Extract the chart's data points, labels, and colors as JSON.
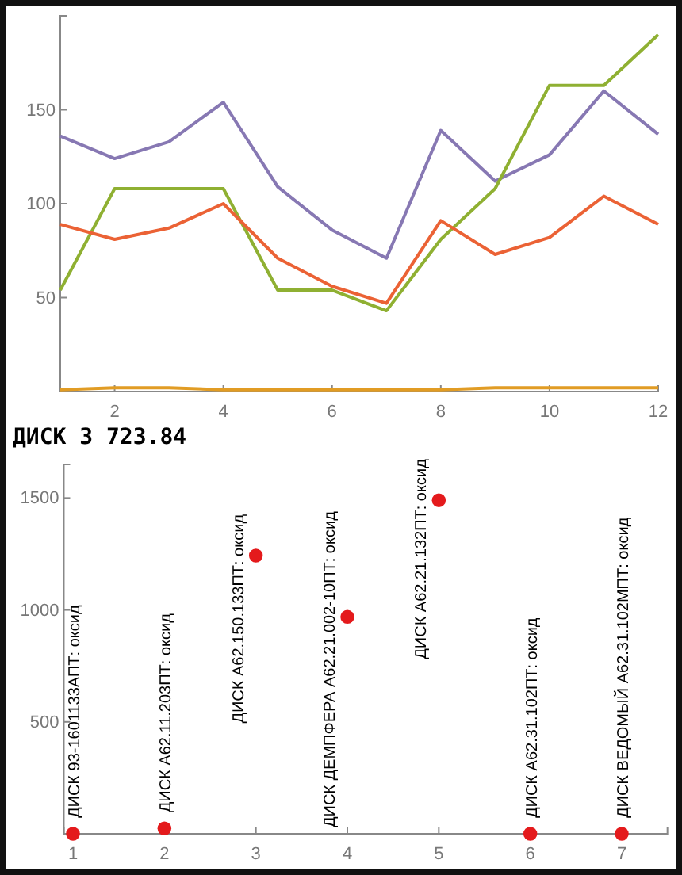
{
  "chart_data": [
    {
      "type": "line",
      "x": [
        1,
        2,
        3,
        4,
        5,
        6,
        7,
        8,
        9,
        10,
        11,
        12
      ],
      "xlim": [
        1,
        12
      ],
      "xticks": [
        2,
        4,
        6,
        8,
        10,
        12
      ],
      "ylim": [
        0,
        200
      ],
      "yticks": [
        50,
        100,
        150
      ],
      "grid": false,
      "marker": "none",
      "line_style": "solid",
      "series": [
        {
          "color": "#8778b3",
          "values": [
            136,
            124,
            133,
            154,
            109,
            86,
            71,
            139,
            112,
            126,
            160,
            137
          ]
        },
        {
          "color": "#8fb032",
          "values": [
            54,
            108,
            108,
            108,
            54,
            54,
            43,
            81,
            108,
            163,
            163,
            190
          ]
        },
        {
          "color": "#eb6235",
          "values": [
            89,
            81,
            87,
            100,
            71,
            56,
            47,
            91,
            73,
            82,
            104,
            89
          ]
        },
        {
          "color": "#e19c24",
          "values": [
            1,
            2,
            2,
            1,
            1,
            1,
            1,
            1,
            2,
            2,
            2,
            2
          ]
        }
      ]
    },
    {
      "type": "scatter",
      "title": "ДИСК 3 723.84",
      "x": [
        1,
        2,
        3,
        4,
        5,
        6,
        7
      ],
      "xlim": [
        0.9,
        7.5
      ],
      "xticks": [
        1,
        2,
        3,
        4,
        5,
        6,
        7
      ],
      "ylim": [
        0,
        1650
      ],
      "yticks": [
        500,
        1000,
        1500
      ],
      "grid": false,
      "marker": "circle",
      "series": [
        {
          "color": "#e41a1c",
          "values": [
            0,
            24,
            1243,
            969,
            1490,
            0,
            0
          ]
        }
      ],
      "annotations": [
        {
          "text": "ДИСК 93-1601133АПТ: оксид",
          "x": 1,
          "y": 0
        },
        {
          "text": "ДИСК А62.11.203ПТ: оксид",
          "x": 2,
          "y": 24
        },
        {
          "text": "ДИСК А62.150.133ПТ: оксид",
          "x": 3,
          "y": 1243
        },
        {
          "text": "ДИСК ДЕМПФЕРА А62.21.002-10ПТ: оксид",
          "x": 4,
          "y": 969
        },
        {
          "text": "ДИСК А62.21.132ПТ: оксид",
          "x": 5,
          "y": 1490
        },
        {
          "text": "ДИСК А62.31.102ПТ: оксид",
          "x": 6,
          "y": 0
        },
        {
          "text": "ДИСК ВЕДОМЫЙ А62.31.102МПТ: оксид",
          "x": 7,
          "y": 0
        }
      ]
    }
  ]
}
